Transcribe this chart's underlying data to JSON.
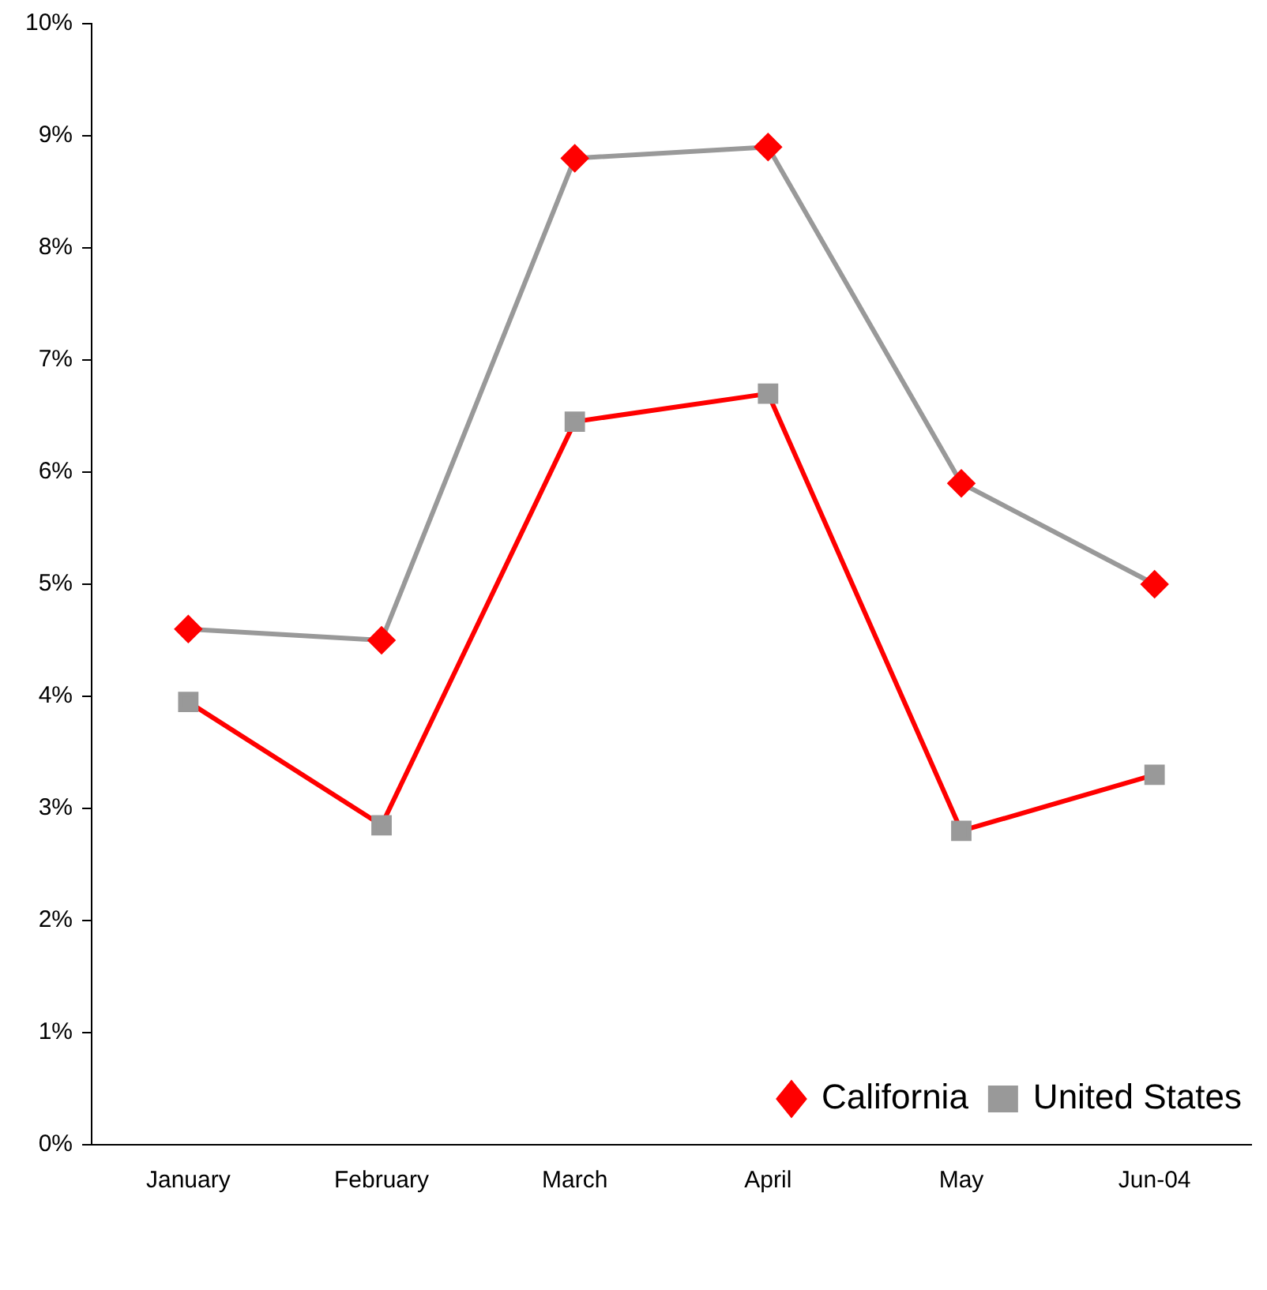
{
  "chart_data": {
    "type": "line",
    "categories": [
      "January",
      "February",
      "March",
      "April",
      "May",
      "Jun-04"
    ],
    "series": [
      {
        "name": "California",
        "color": "#999999",
        "colors": [
          "#ff0000",
          "#ff0000",
          "#ff0000",
          "#ff0000",
          "#ff0000",
          "#ff0000"
        ],
        "marker": "diamond",
        "values": [
          4.6,
          4.5,
          8.8,
          8.9,
          5.9,
          5.0
        ]
      },
      {
        "name": "United States",
        "color": "#ff0000",
        "colors": [
          "#999999",
          "#999999",
          "#999999",
          "#999999",
          "#999999",
          "#999999"
        ],
        "marker": "square",
        "values": [
          3.95,
          2.85,
          6.45,
          6.7,
          2.8,
          3.3
        ]
      }
    ],
    "ylim": [
      0,
      10
    ],
    "yticks": [
      {
        "value": 0,
        "label": "0%"
      },
      {
        "value": 1,
        "label": "1%"
      },
      {
        "value": 2,
        "label": "2%"
      },
      {
        "value": 3,
        "label": "3%"
      },
      {
        "value": 4,
        "label": "4%"
      },
      {
        "value": 5,
        "label": "5%"
      },
      {
        "value": 6,
        "label": "6%"
      },
      {
        "value": 7,
        "label": "7%"
      },
      {
        "value": 8,
        "label": "8%"
      },
      {
        "value": 9,
        "label": "9%"
      },
      {
        "value": 10,
        "label": "10%"
      }
    ],
    "grid": false,
    "legend": "bottom right",
    "line_style": "solid"
  }
}
